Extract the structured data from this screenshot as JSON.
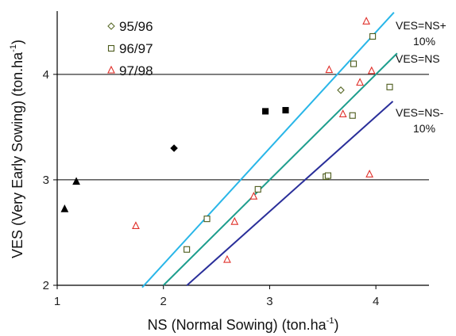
{
  "chart_data": {
    "type": "scatter",
    "xlabel": "NS (Normal Sowing) (ton.ha",
    "xlabel_sup": "-1",
    "xlabel_end": ")",
    "ylabel": "VES (Very Early Sowing) (ton.ha",
    "ylabel_sup": "-1",
    "ylabel_end": ")",
    "xlim": [
      1,
      4.5
    ],
    "ylim": [
      2,
      4.6
    ],
    "xticks": [
      1,
      2,
      3,
      4
    ],
    "yticks": [
      2,
      3,
      4
    ],
    "grid": "horizontal",
    "legend": "top-left",
    "series": [
      {
        "name": "95/96",
        "marker": "diamond-open",
        "color": "#5a6b2a",
        "x": [
          3.67
        ],
        "y": [
          3.85
        ]
      },
      {
        "name": "96/97",
        "marker": "square-open",
        "color": "#4b5a1a",
        "x": [
          2.22,
          2.41,
          2.89,
          3.53,
          3.55,
          3.78,
          3.79,
          3.97,
          4.13
        ],
        "y": [
          2.34,
          2.63,
          2.91,
          3.03,
          3.04,
          3.61,
          4.1,
          4.36,
          3.88
        ]
      },
      {
        "name": "97/98",
        "marker": "triangle-open",
        "color": "#e0302a",
        "x": [
          1.74,
          2.6,
          2.67,
          2.85,
          3.56,
          3.69,
          3.85,
          3.91,
          3.94,
          3.96
        ],
        "y": [
          2.56,
          2.24,
          2.6,
          2.84,
          4.04,
          3.62,
          3.92,
          4.5,
          3.05,
          4.03
        ]
      }
    ],
    "extra_points": [
      {
        "marker": "triangle-filled",
        "color": "#000000",
        "x": [
          1.07,
          1.18
        ],
        "y": [
          2.72,
          2.98
        ]
      },
      {
        "marker": "diamond-filled",
        "color": "#000000",
        "x": [
          2.1
        ],
        "y": [
          3.3
        ]
      },
      {
        "marker": "square-filled",
        "color": "#000000",
        "x": [
          2.96,
          3.15
        ],
        "y": [
          3.65,
          3.66
        ]
      }
    ],
    "ref_lines": [
      {
        "label_1": "VES=NS+",
        "label_2": "10%",
        "slope": 1.1,
        "color": "#29b6e8",
        "x_range": [
          1.8,
          4.17
        ]
      },
      {
        "label_1": "VES=NS",
        "label_2": "",
        "slope": 1.0,
        "color": "#1e9e8e",
        "x_range": [
          2.0,
          4.2
        ]
      },
      {
        "label_1": "VES=NS-",
        "label_2": "10%",
        "slope": 0.9,
        "color": "#2a2f9a",
        "x_range": [
          2.22,
          4.16
        ]
      }
    ]
  }
}
